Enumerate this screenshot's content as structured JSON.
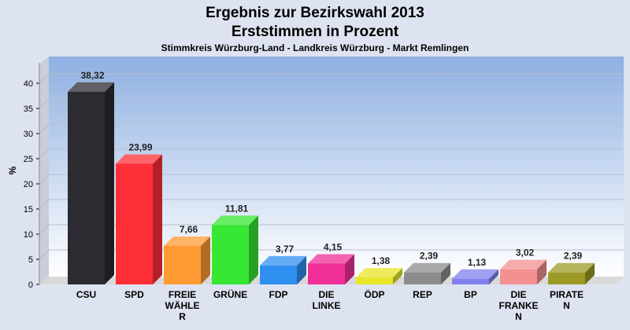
{
  "chart_data": {
    "type": "bar",
    "title": "Ergebnis zur Bezirkswahl 2013",
    "subtitle": "Erststimmen in Prozent",
    "subtitle2": "Stimmkreis Würzburg-Land - Landkreis Würzburg - Markt Remlingen",
    "ylabel": "%",
    "ylim": [
      0,
      45
    ],
    "yticks": [
      "0",
      "5",
      "10",
      "15",
      "20",
      "25",
      "30",
      "35",
      "40"
    ],
    "grid": true,
    "categories": [
      [
        "CSU"
      ],
      [
        "SPD"
      ],
      [
        "FREIE",
        "WÄHLE",
        "R"
      ],
      [
        "GRÜNE"
      ],
      [
        "FDP"
      ],
      [
        "DIE",
        "LINKE"
      ],
      [
        "ÖDP"
      ],
      [
        "REP"
      ],
      [
        "BP"
      ],
      [
        "DIE",
        "FRANKE",
        "N"
      ],
      [
        "PIRATE",
        "N"
      ]
    ],
    "values": [
      38.32,
      23.99,
      7.66,
      11.81,
      3.77,
      4.15,
      1.38,
      2.39,
      1.13,
      3.02,
      2.39
    ],
    "value_labels": [
      "38,32",
      "23,99",
      "7,66",
      "11,81",
      "3,77",
      "4,15",
      "1,38",
      "2,39",
      "1,13",
      "3,02",
      "2,39"
    ],
    "colors": [
      "#2b2b31",
      "#ff2f38",
      "#ff9a34",
      "#38e634",
      "#2f8ff0",
      "#f02f98",
      "#e8e626",
      "#8c8c8c",
      "#8080ee",
      "#f39090",
      "#9c9a26"
    ]
  }
}
